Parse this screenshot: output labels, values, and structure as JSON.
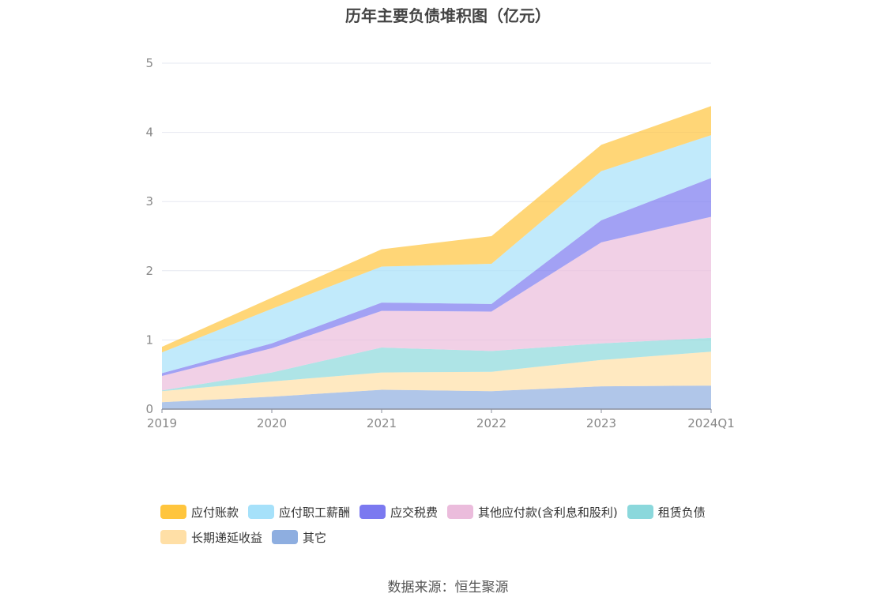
{
  "chart_data": {
    "type": "area",
    "stacked": true,
    "title": "历年主要负债堆积图（亿元）",
    "categories": [
      "2019",
      "2020",
      "2021",
      "2022",
      "2023",
      "2024Q1"
    ],
    "ylim": [
      0,
      5
    ],
    "yticks": [
      0,
      1,
      2,
      3,
      4,
      5
    ],
    "grid": true,
    "legend_position": "bottom",
    "series": [
      {
        "name": "其它",
        "color": "#8eaee0",
        "values": [
          0.1,
          0.18,
          0.28,
          0.26,
          0.33,
          0.34
        ]
      },
      {
        "name": "长期递延收益",
        "color": "#ffdfa6",
        "values": [
          0.16,
          0.22,
          0.25,
          0.28,
          0.38,
          0.49
        ]
      },
      {
        "name": "租赁负债",
        "color": "#8bd8dc",
        "values": [
          0.01,
          0.13,
          0.36,
          0.3,
          0.24,
          0.2
        ]
      },
      {
        "name": "其他应付款(含利息和股利)",
        "color": "#ebbcdc",
        "values": [
          0.21,
          0.35,
          0.53,
          0.57,
          1.46,
          1.75
        ]
      },
      {
        "name": "应交税费",
        "color": "#7b79f0",
        "values": [
          0.04,
          0.07,
          0.12,
          0.11,
          0.32,
          0.56
        ]
      },
      {
        "name": "应付职工薪酬",
        "color": "#a6e1fa",
        "values": [
          0.3,
          0.5,
          0.52,
          0.58,
          0.71,
          0.62
        ]
      },
      {
        "name": "应付账款",
        "color": "#ffc53d",
        "values": [
          0.08,
          0.16,
          0.25,
          0.4,
          0.38,
          0.42
        ]
      }
    ]
  },
  "legend_rows": [
    [
      {
        "label": "应付账款",
        "color": "#ffc53d"
      },
      {
        "label": "应付职工薪酬",
        "color": "#a6e1fa"
      },
      {
        "label": "应交税费",
        "color": "#7b79f0"
      },
      {
        "label": "其他应付款(含利息和股利)",
        "color": "#ebbcdc"
      },
      {
        "label": "租赁负债",
        "color": "#8bd8dc"
      }
    ],
    [
      {
        "label": "长期递延收益",
        "color": "#ffdfa6"
      },
      {
        "label": "其它",
        "color": "#8eaee0"
      }
    ]
  ],
  "source": "数据来源：恒生聚源"
}
